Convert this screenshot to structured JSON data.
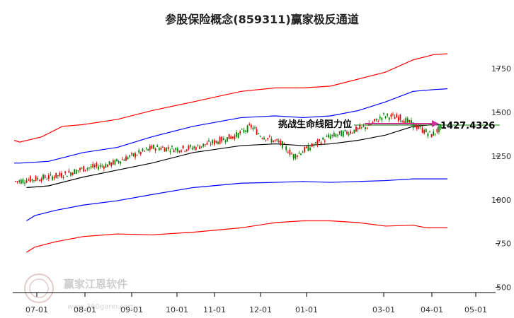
{
  "chart_data": {
    "type": "line",
    "title": "参股保险概念(859311)赢家极反通道",
    "y_ticks": [
      500,
      750,
      1000,
      1250,
      1500,
      1750
    ],
    "x_ticks": [
      "07-01",
      "08-01",
      "09-01",
      "10-01",
      "11-01",
      "12-01",
      "01-01",
      "03-01",
      "04-01",
      "05-01"
    ],
    "ylim": [
      470,
      1900
    ],
    "grid": false,
    "candles": {
      "name": "K线",
      "close_points": [
        [
          "06-15",
          1105
        ],
        [
          "07-01",
          1120
        ],
        [
          "07-15",
          1140
        ],
        [
          "08-01",
          1180
        ],
        [
          "08-15",
          1200
        ],
        [
          "09-01",
          1250
        ],
        [
          "09-15",
          1300
        ],
        [
          "10-01",
          1290
        ],
        [
          "10-15",
          1300
        ],
        [
          "11-01",
          1330
        ],
        [
          "11-15",
          1370
        ],
        [
          "11-25",
          1420
        ],
        [
          "12-01",
          1370
        ],
        [
          "12-15",
          1320
        ],
        [
          "12-25",
          1250
        ],
        [
          "01-01",
          1290
        ],
        [
          "01-15",
          1360
        ],
        [
          "02-01",
          1390
        ],
        [
          "02-15",
          1420
        ],
        [
          "03-01",
          1480
        ],
        [
          "03-15",
          1470
        ],
        [
          "03-25",
          1420
        ],
        [
          "04-01",
          1370
        ],
        [
          "04-10",
          1420
        ]
      ]
    },
    "series": [
      {
        "name": "",
        "color": "#ff0000",
        "values": [
          [
            0,
            1340
          ],
          [
            8,
            1330
          ],
          [
            40,
            1360
          ],
          [
            70,
            1420
          ],
          [
            100,
            1430
          ],
          [
            150,
            1460
          ],
          [
            200,
            1510
          ],
          [
            260,
            1560
          ],
          [
            330,
            1620
          ],
          [
            380,
            1640
          ],
          [
            420,
            1640
          ],
          [
            460,
            1650
          ],
          [
            500,
            1690
          ],
          [
            540,
            1730
          ],
          [
            580,
            1800
          ],
          [
            610,
            1830
          ],
          [
            630,
            1835
          ]
        ]
      },
      {
        "name": "",
        "color": "#0000ff",
        "values": [
          [
            0,
            1210
          ],
          [
            8,
            1210
          ],
          [
            50,
            1220
          ],
          [
            100,
            1270
          ],
          [
            150,
            1300
          ],
          [
            200,
            1360
          ],
          [
            260,
            1420
          ],
          [
            330,
            1470
          ],
          [
            380,
            1480
          ],
          [
            420,
            1470
          ],
          [
            460,
            1480
          ],
          [
            500,
            1510
          ],
          [
            540,
            1560
          ],
          [
            580,
            1620
          ],
          [
            610,
            1630
          ],
          [
            630,
            1635
          ]
        ]
      },
      {
        "name": "",
        "color": "#000000",
        "values": [
          [
            18,
            1070
          ],
          [
            50,
            1080
          ],
          [
            100,
            1130
          ],
          [
            150,
            1170
          ],
          [
            200,
            1210
          ],
          [
            260,
            1270
          ],
          [
            330,
            1310
          ],
          [
            380,
            1320
          ],
          [
            420,
            1310
          ],
          [
            460,
            1320
          ],
          [
            500,
            1340
          ],
          [
            540,
            1370
          ],
          [
            580,
            1420
          ],
          [
            610,
            1430
          ],
          [
            620,
            1430
          ]
        ]
      },
      {
        "name": "",
        "color": "#0000ff",
        "values": [
          [
            18,
            880
          ],
          [
            30,
            910
          ],
          [
            60,
            940
          ],
          [
            100,
            970
          ],
          [
            150,
            995
          ],
          [
            200,
            1030
          ],
          [
            260,
            1070
          ],
          [
            330,
            1095
          ],
          [
            380,
            1100
          ],
          [
            420,
            1105
          ],
          [
            460,
            1100
          ],
          [
            500,
            1105
          ],
          [
            540,
            1110
          ],
          [
            580,
            1120
          ],
          [
            610,
            1120
          ],
          [
            630,
            1120
          ]
        ]
      },
      {
        "name": "",
        "color": "#ff0000",
        "values": [
          [
            18,
            700
          ],
          [
            30,
            730
          ],
          [
            60,
            760
          ],
          [
            100,
            790
          ],
          [
            150,
            805
          ],
          [
            200,
            800
          ],
          [
            260,
            815
          ],
          [
            330,
            840
          ],
          [
            380,
            870
          ],
          [
            420,
            880
          ],
          [
            460,
            880
          ],
          [
            500,
            870
          ],
          [
            540,
            850
          ],
          [
            580,
            855
          ],
          [
            600,
            840
          ],
          [
            630,
            840
          ]
        ]
      }
    ],
    "annotations": [
      {
        "text": "挑战生命线阻力位",
        "value": 1427.4326
      },
      {
        "text": "1427.4326",
        "value": 1427.4326
      }
    ],
    "reference_line": {
      "value": 1427.4326,
      "color": "#008000"
    }
  },
  "watermark": {
    "name": "赢家江恩软件",
    "url": "www.360gann.com"
  }
}
